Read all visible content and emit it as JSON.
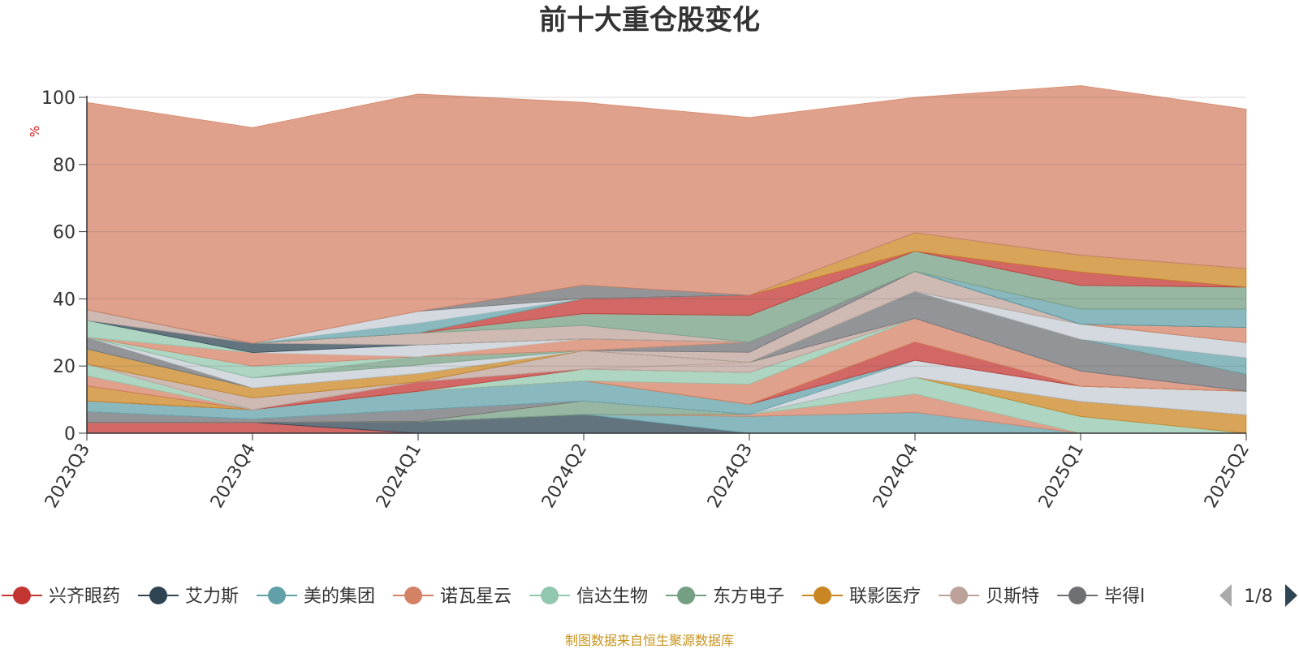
{
  "title": "前十大重仓股变化",
  "source_note": "制图数据来自恒生聚源数据库",
  "y_unit": "%",
  "legend_page": "1/8",
  "legend_nav": {
    "prev": "arrow-left-icon",
    "next": "arrow-right-icon"
  },
  "legend_items": [
    {
      "name": "兴齐眼药",
      "color": "#c23531"
    },
    {
      "name": "艾力斯",
      "color": "#2f4554"
    },
    {
      "name": "美的集团",
      "color": "#61a0a8"
    },
    {
      "name": "诺瓦星云",
      "color": "#d48265"
    },
    {
      "name": "信达生物",
      "color": "#91c7ae"
    },
    {
      "name": "东方电子",
      "color": "#749f83"
    },
    {
      "name": "联影医疗",
      "color": "#ca8622"
    },
    {
      "name": "贝斯特",
      "color": "#bda29a"
    },
    {
      "name": "毕得l",
      "color": "#6e7074"
    }
  ],
  "chart_data": {
    "type": "area",
    "stacked": true,
    "title": "前十大重仓股变化",
    "categories": [
      "2023Q3",
      "2023Q4",
      "2024Q1",
      "2024Q2",
      "2024Q3",
      "2024Q4",
      "2025Q1",
      "2025Q2"
    ],
    "ylabel": "%",
    "ylim": [
      0,
      100
    ],
    "yticks": [
      0,
      20,
      40,
      60,
      80,
      100
    ],
    "series": [
      {
        "name": "兴齐眼药",
        "values": [
          3.2,
          3.2,
          0,
          0,
          0,
          0,
          0,
          0
        ],
        "color": "#c23531"
      },
      {
        "name": "艾力斯",
        "values": [
          0,
          0,
          3.5,
          5.6,
          0,
          0,
          0,
          0
        ],
        "color": "#2f4554"
      },
      {
        "name": "美的集团",
        "values": [
          0,
          0,
          0,
          0,
          5.0,
          6.2,
          0,
          0
        ],
        "color": "#61a0a8"
      },
      {
        "name": "诺瓦星云",
        "values": [
          0,
          0,
          0,
          0,
          0.6,
          5.5,
          0,
          0
        ],
        "color": "#d48265"
      },
      {
        "name": "信达生物",
        "values": [
          0,
          0,
          0,
          0,
          0,
          5.0,
          5.0,
          0
        ],
        "color": "#91c7ae"
      },
      {
        "name": "东方电子",
        "values": [
          0,
          0,
          0,
          4.0,
          0,
          0,
          0,
          0
        ],
        "color": "#749f83"
      },
      {
        "name": "联影医疗",
        "values": [
          0,
          0,
          0,
          0,
          0,
          0,
          4.5,
          5.5
        ],
        "color": "#ca8622"
      },
      {
        "name": "贝斯特",
        "values": [
          0,
          0,
          0,
          0,
          0,
          0,
          0,
          0
        ],
        "color": "#bda29a"
      },
      {
        "name": "毕得l",
        "values": [
          3.2,
          1.0,
          3.5,
          0,
          0,
          0,
          0,
          0
        ],
        "color": "#6e7074"
      },
      {
        "values": [
          0,
          0,
          0,
          0,
          0,
          0,
          0,
          0
        ],
        "color": "#546570"
      },
      {
        "values": [
          0,
          0,
          0,
          0,
          0,
          5.0,
          4.5,
          7.0
        ],
        "color": "#c4ccd3"
      },
      {
        "values": [
          3.2,
          2.8,
          5.5,
          6.0,
          3.0,
          0,
          0,
          0
        ],
        "color": "#61a0a8"
      },
      {
        "values": [
          0,
          0,
          0,
          0,
          0,
          5.5,
          0,
          0
        ],
        "color": "#c23531"
      },
      {
        "values": [
          4.5,
          0,
          0,
          0,
          0,
          0,
          0,
          0
        ],
        "color": "#ca8622"
      },
      {
        "values": [
          0,
          0,
          0,
          0,
          6.0,
          7.0,
          4.5,
          0
        ],
        "color": "#d48265"
      },
      {
        "values": [
          0,
          0,
          0,
          3.5,
          3.5,
          0,
          0,
          0
        ],
        "color": "#91c7ae"
      },
      {
        "values": [
          0,
          0,
          2.8,
          0,
          0,
          0,
          0,
          0
        ],
        "color": "#c23531"
      },
      {
        "values": [
          3.0,
          0,
          0,
          0,
          0,
          0,
          0,
          0
        ],
        "color": "#d48265"
      },
      {
        "values": [
          3.5,
          0,
          0,
          0,
          0,
          0,
          0,
          0
        ],
        "color": "#91c7ae"
      },
      {
        "values": [
          0,
          0,
          0,
          0,
          3.0,
          0,
          0,
          0
        ],
        "color": "#bda29a"
      },
      {
        "values": [
          0,
          3.5,
          0,
          5.5,
          0,
          0,
          0,
          0
        ],
        "color": "#bda29a"
      },
      {
        "values": [
          0,
          0,
          0,
          0,
          0,
          8.0,
          9.5,
          5.0
        ],
        "color": "#6e7074"
      },
      {
        "values": [
          4.5,
          3.0,
          2.5,
          0,
          0,
          0,
          0,
          0
        ],
        "color": "#ca8622"
      },
      {
        "values": [
          0,
          0,
          0,
          0,
          0,
          0,
          0,
          5.0
        ],
        "color": "#61a0a8"
      },
      {
        "values": [
          3.5,
          0,
          0,
          0,
          0,
          0,
          0,
          0
        ],
        "color": "#6e7074"
      },
      {
        "values": [
          0,
          3.0,
          2.5,
          0,
          0,
          0,
          4.5,
          4.5
        ],
        "color": "#c4ccd3"
      },
      {
        "values": [
          0,
          0,
          2.5,
          0,
          0,
          0,
          0,
          0
        ],
        "color": "#749f83"
      },
      {
        "values": [
          0,
          0,
          0,
          0,
          3.0,
          6.0,
          0,
          0
        ],
        "color": "#bda29a"
      },
      {
        "values": [
          0,
          0,
          0,
          0,
          3.0,
          0,
          0,
          0
        ],
        "color": "#6e7074"
      },
      {
        "values": [
          0,
          3.5,
          0,
          0,
          0,
          0,
          0,
          0
        ],
        "color": "#91c7ae"
      },
      {
        "values": [
          0,
          4.0,
          0,
          3.5,
          0,
          0,
          0,
          4.5
        ],
        "color": "#d48265"
      },
      {
        "values": [
          0,
          0,
          3.5,
          0,
          0,
          0,
          0,
          0
        ],
        "color": "#c4ccd3"
      },
      {
        "values": [
          5.0,
          0,
          0,
          0,
          0,
          0,
          0,
          0
        ],
        "color": "#91c7ae"
      },
      {
        "values": [
          0,
          2.8,
          0,
          0,
          0,
          0,
          0,
          0
        ],
        "color": "#2f4554"
      },
      {
        "values": [
          0,
          0,
          0,
          0,
          0,
          0,
          4.5,
          5.5
        ],
        "color": "#61a0a8"
      },
      {
        "values": [
          3.2,
          0,
          3.5,
          4.0,
          0,
          0,
          0,
          0
        ],
        "color": "#bda29a"
      },
      {
        "values": [
          0,
          0,
          0,
          3.5,
          8.0,
          6.0,
          7.0,
          6.5
        ],
        "color": "#749f83"
      },
      {
        "values": [
          0,
          0,
          0,
          4.5,
          6.0,
          0,
          4.0,
          0
        ],
        "color": "#c23531"
      },
      {
        "values": [
          0,
          0,
          0,
          0,
          0,
          5.5,
          5.0,
          5.5
        ],
        "color": "#ca8622"
      },
      {
        "values": [
          0,
          0,
          3.0,
          0,
          0,
          0,
          0,
          0
        ],
        "color": "#61a0a8"
      },
      {
        "values": [
          0,
          0,
          3.5,
          0,
          0,
          0,
          0,
          0
        ],
        "color": "#c4ccd3"
      },
      {
        "values": [
          0,
          0,
          0,
          4.0,
          0,
          0,
          0,
          0
        ],
        "color": "#6e7074"
      },
      {
        "values": [
          61.7,
          64.2,
          64.7,
          54.4,
          52.9,
          40.3,
          50.5,
          47.5
        ],
        "color": "#d48265"
      }
    ]
  }
}
